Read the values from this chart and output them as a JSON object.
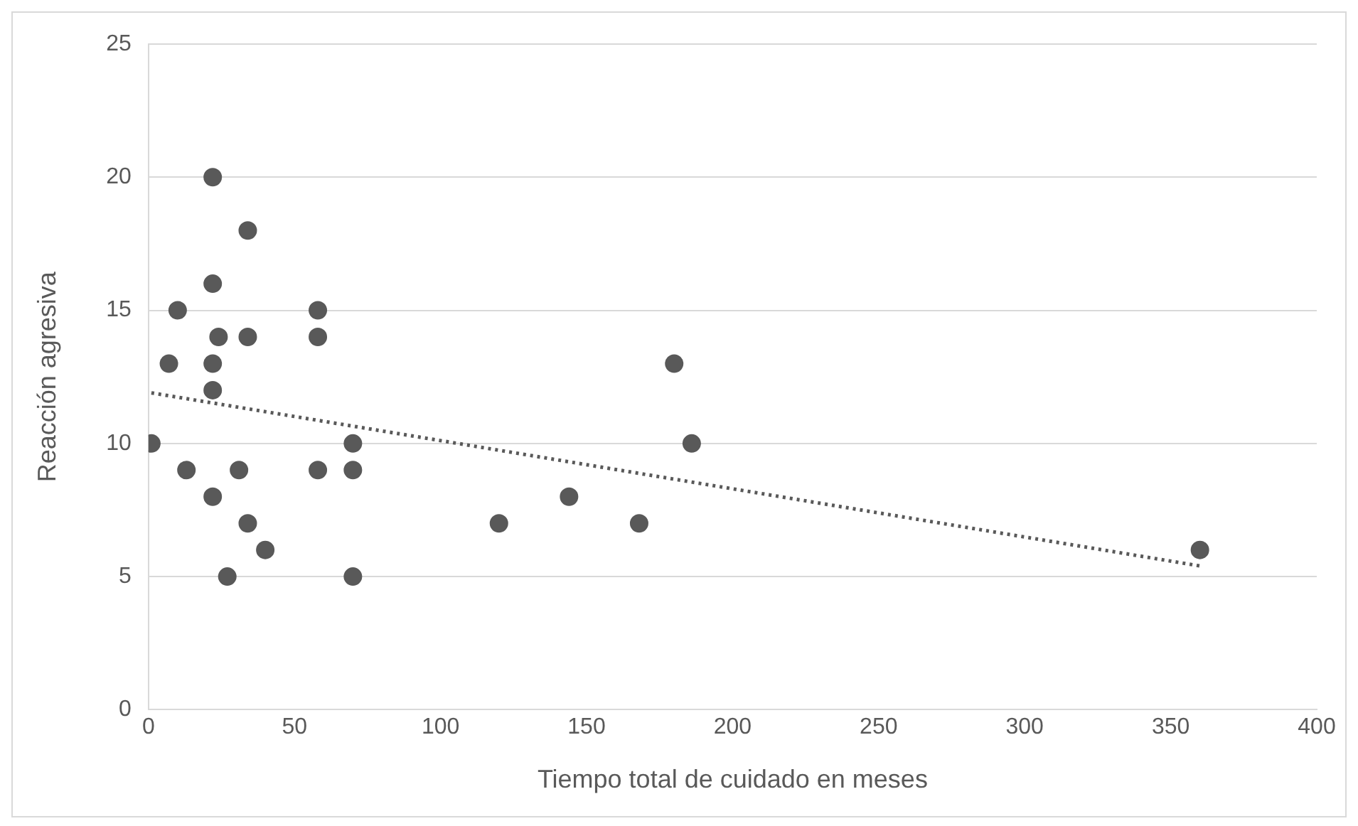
{
  "chart_data": {
    "type": "scatter",
    "xlabel": "Tiempo total de cuidado en meses",
    "ylabel": "Reacción agresiva",
    "xlim": [
      0,
      400
    ],
    "xticks": [
      0,
      50,
      100,
      150,
      200,
      250,
      300,
      350,
      400
    ],
    "ylim": [
      0,
      25
    ],
    "yticks": [
      0,
      5,
      10,
      15,
      20,
      25
    ],
    "grid": "y",
    "marker": "circle",
    "series": [
      {
        "color": "#595959",
        "x": [
          1,
          7,
          10,
          13,
          22,
          22,
          22,
          22,
          22,
          24,
          27,
          31,
          34,
          34,
          34,
          40,
          58,
          58,
          58,
          70,
          70,
          70,
          120,
          144,
          168,
          180,
          186,
          360
        ],
        "values": [
          10,
          13,
          15,
          9,
          20,
          16,
          13,
          12,
          8,
          14,
          5,
          9,
          18,
          14,
          7,
          6,
          15,
          14,
          9,
          10,
          9,
          5,
          7,
          8,
          7,
          13,
          10,
          6
        ]
      },
      {
        "type": "line",
        "color": "#595959",
        "line_style": "dotted",
        "marker": "none",
        "x": [
          1,
          360
        ],
        "values": [
          11.9,
          5.4
        ]
      }
    ]
  }
}
